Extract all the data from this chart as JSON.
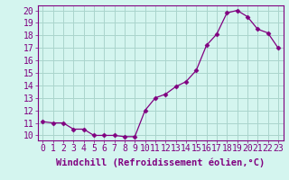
{
  "x": [
    0,
    1,
    2,
    3,
    4,
    5,
    6,
    7,
    8,
    9,
    10,
    11,
    12,
    13,
    14,
    15,
    16,
    17,
    18,
    19,
    20,
    21,
    22,
    23
  ],
  "y": [
    11.1,
    11.0,
    11.0,
    10.5,
    10.5,
    10.0,
    10.0,
    10.0,
    9.9,
    9.9,
    12.0,
    13.0,
    13.3,
    13.9,
    14.3,
    15.2,
    17.2,
    18.1,
    19.8,
    20.0,
    19.5,
    18.5,
    18.2,
    17.0
  ],
  "line_color": "#800080",
  "marker": "D",
  "marker_size": 2.5,
  "bg_color": "#d4f5ef",
  "grid_color": "#aad4cc",
  "xlabel": "Windchill (Refroidissement éolien,°C)",
  "xlabel_color": "#800080",
  "xlabel_fontsize": 7.5,
  "ylabel_ticks": [
    10,
    11,
    12,
    13,
    14,
    15,
    16,
    17,
    18,
    19,
    20
  ],
  "xlim": [
    -0.5,
    23.5
  ],
  "ylim": [
    9.6,
    20.4
  ],
  "tick_fontsize": 7,
  "tick_color": "#800080"
}
